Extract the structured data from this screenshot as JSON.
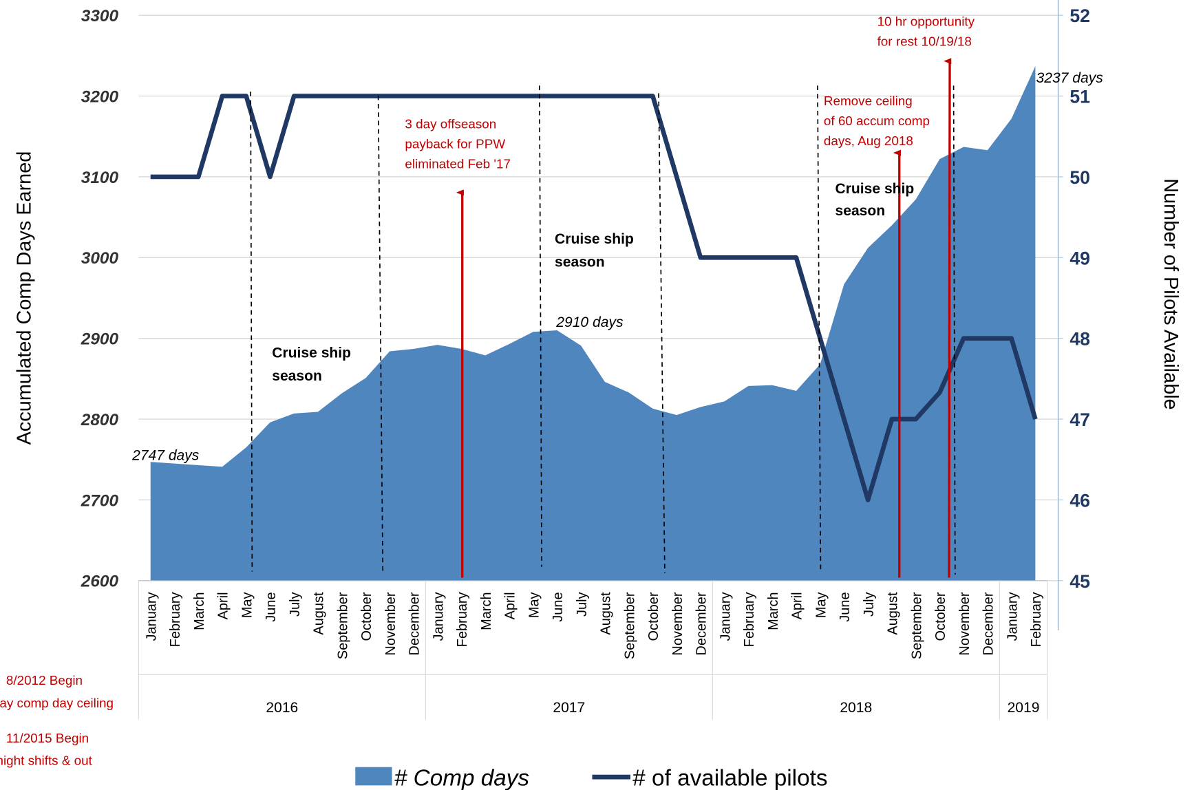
{
  "chart_data": {
    "type": "area-line",
    "y_label": "Accumulated  Comp Days Earned",
    "y2_label": "Number of Pilots Available",
    "categories": [
      "January",
      "February",
      "March",
      "April",
      "May",
      "June",
      "July",
      "August",
      "September",
      "October",
      "November",
      "December",
      "January",
      "February",
      "March",
      "April",
      "May",
      "June",
      "July",
      "August",
      "September",
      "October",
      "November",
      "December",
      "January",
      "February",
      "March",
      "April",
      "May",
      "June",
      "July",
      "August",
      "September",
      "October",
      "November",
      "December",
      "January",
      "February"
    ],
    "x_groups": [
      "2016",
      "2017",
      "2018",
      "2019"
    ],
    "series": [
      {
        "name": "# Comp days",
        "type": "area",
        "color": "#4f86be",
        "values": [
          2747,
          2745,
          2743,
          2741,
          2765,
          2796,
          2807,
          2809,
          2832,
          2851,
          2884,
          2887,
          2892,
          2887,
          2879,
          2893,
          2908,
          2910,
          2891,
          2846,
          2833,
          2813,
          2805,
          2815,
          2822,
          2841,
          2842,
          2835,
          2868,
          2967,
          3012,
          3040,
          3072,
          3122,
          3137,
          3133,
          3172,
          3237
        ]
      },
      {
        "name": "# of available pilots",
        "type": "line",
        "axis": "y2",
        "color": "#1f3864",
        "values": [
          50,
          50,
          50,
          51,
          51,
          50,
          51,
          51,
          51,
          51,
          51,
          51,
          51,
          51,
          51,
          51,
          51,
          51,
          51,
          51,
          51,
          51,
          50,
          49,
          49,
          49,
          49,
          49,
          48,
          47,
          46,
          47,
          47,
          47.33,
          48,
          48,
          48,
          47
        ]
      }
    ],
    "ylim": [
      2600,
      3300
    ],
    "yticks": [
      2600,
      2700,
      2800,
      2900,
      3000,
      3100,
      3200,
      3300
    ],
    "y2lim": [
      45,
      52
    ],
    "y2ticks": [
      45,
      46,
      47,
      48,
      49,
      50,
      51,
      52
    ],
    "annotations": [
      [
        "2747 days"
      ],
      [
        "2910 days"
      ],
      [
        "3237 days"
      ],
      [
        "Cruise ship",
        "season"
      ],
      [
        "Cruise ship",
        "season"
      ],
      [
        "Cruise ship",
        "season"
      ],
      [
        "3 day offseason",
        "payback for PPW",
        "eliminated Feb '17"
      ],
      [
        "Remove ceiling",
        "of 60 accum comp",
        "days, Aug 2018"
      ],
      [
        "10 hr opportunity",
        "for rest 10/19/18"
      ],
      [
        "8/2012 Begin",
        "day comp day ceiling"
      ],
      [
        "11/2015 Begin",
        "night shifts & out"
      ]
    ]
  }
}
